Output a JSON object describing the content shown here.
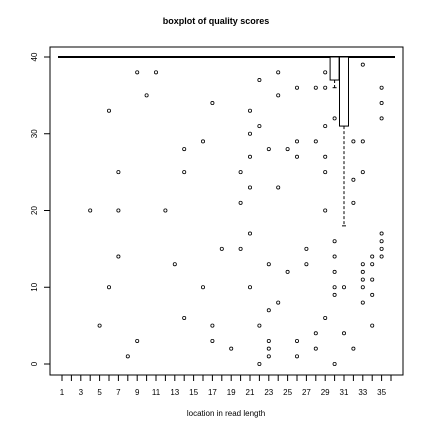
{
  "chart_data": {
    "type": "boxplot",
    "title": "boxplot of quality scores",
    "xlabel": "location in read length",
    "ylabel": "",
    "xlim": [
      0.5,
      36.5
    ],
    "ylim": [
      -1,
      41
    ],
    "x_ticks": [
      1,
      2,
      3,
      4,
      5,
      6,
      7,
      8,
      9,
      10,
      11,
      12,
      13,
      14,
      15,
      16,
      17,
      18,
      19,
      20,
      21,
      22,
      23,
      24,
      25,
      26,
      27,
      28,
      29,
      30,
      31,
      32,
      33,
      34,
      35,
      36
    ],
    "x_tick_labels": [
      "1",
      "3",
      "5",
      "7",
      "9",
      "11",
      "13",
      "15",
      "17",
      "19",
      "21",
      "23",
      "25",
      "27",
      "29",
      "31",
      "33",
      "35"
    ],
    "y_ticks": [
      0,
      10,
      20,
      30,
      40
    ],
    "y_tick_labels": [
      "0",
      "10",
      "20",
      "30",
      "40"
    ],
    "median_line": 40,
    "boxes": [
      {
        "x": 30,
        "q1": 37,
        "median": 40,
        "q3": 40,
        "whisker_low": 36,
        "whisker_high": 40
      },
      {
        "x": 31,
        "q1": 31,
        "median": 40,
        "q3": 40,
        "whisker_low": 18,
        "whisker_high": 40
      }
    ],
    "outliers": [
      [
        4,
        20
      ],
      [
        5,
        5
      ],
      [
        6,
        33
      ],
      [
        6,
        10
      ],
      [
        7,
        25
      ],
      [
        7,
        20
      ],
      [
        7,
        14
      ],
      [
        8,
        1
      ],
      [
        9,
        38
      ],
      [
        9,
        3
      ],
      [
        10,
        35
      ],
      [
        11,
        38
      ],
      [
        12,
        20
      ],
      [
        13,
        13
      ],
      [
        14,
        28
      ],
      [
        14,
        25
      ],
      [
        14,
        6
      ],
      [
        16,
        29
      ],
      [
        16,
        10
      ],
      [
        17,
        34
      ],
      [
        17,
        5
      ],
      [
        17,
        3
      ],
      [
        18,
        15
      ],
      [
        19,
        2
      ],
      [
        20,
        25
      ],
      [
        20,
        21
      ],
      [
        20,
        15
      ],
      [
        21,
        33
      ],
      [
        21,
        30
      ],
      [
        21,
        27
      ],
      [
        21,
        23
      ],
      [
        21,
        17
      ],
      [
        21,
        10
      ],
      [
        22,
        37
      ],
      [
        22,
        31
      ],
      [
        22,
        5
      ],
      [
        22,
        0
      ],
      [
        23,
        28
      ],
      [
        23,
        13
      ],
      [
        23,
        7
      ],
      [
        23,
        3
      ],
      [
        23,
        2
      ],
      [
        23,
        1
      ],
      [
        24,
        38
      ],
      [
        24,
        35
      ],
      [
        24,
        23
      ],
      [
        24,
        8
      ],
      [
        25,
        28
      ],
      [
        25,
        12
      ],
      [
        26,
        36
      ],
      [
        26,
        29
      ],
      [
        26,
        27
      ],
      [
        26,
        3
      ],
      [
        26,
        1
      ],
      [
        27,
        15
      ],
      [
        27,
        13
      ],
      [
        28,
        36
      ],
      [
        28,
        29
      ],
      [
        28,
        4
      ],
      [
        28,
        2
      ],
      [
        29,
        38
      ],
      [
        29,
        36
      ],
      [
        29,
        31
      ],
      [
        29,
        27
      ],
      [
        29,
        25
      ],
      [
        29,
        20
      ],
      [
        29,
        6
      ],
      [
        30,
        32
      ],
      [
        30,
        16
      ],
      [
        30,
        14
      ],
      [
        30,
        12
      ],
      [
        30,
        10
      ],
      [
        30,
        9
      ],
      [
        30,
        0
      ],
      [
        31,
        10
      ],
      [
        31,
        4
      ],
      [
        32,
        29
      ],
      [
        32,
        24
      ],
      [
        32,
        21
      ],
      [
        32,
        2
      ],
      [
        33,
        39
      ],
      [
        33,
        29
      ],
      [
        33,
        25
      ],
      [
        33,
        13
      ],
      [
        33,
        12
      ],
      [
        33,
        11
      ],
      [
        33,
        10
      ],
      [
        33,
        8
      ],
      [
        34,
        14
      ],
      [
        34,
        13
      ],
      [
        34,
        11
      ],
      [
        34,
        9
      ],
      [
        34,
        5
      ],
      [
        35,
        36
      ],
      [
        35,
        34
      ],
      [
        35,
        32
      ],
      [
        35,
        17
      ],
      [
        35,
        16
      ],
      [
        35,
        15
      ],
      [
        35,
        14
      ]
    ]
  }
}
